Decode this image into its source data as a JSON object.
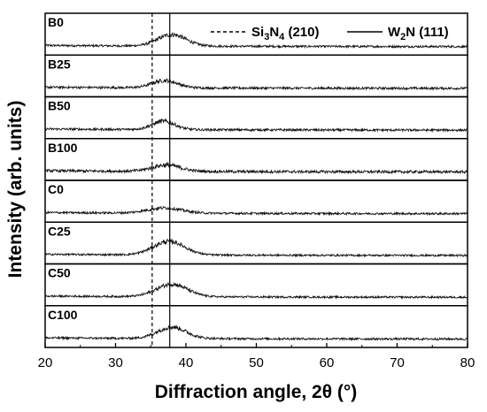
{
  "chart_data": {
    "type": "line",
    "xlabel": "Diffraction angle, 2θ (°)",
    "ylabel": "Intensity (arb. units)",
    "xlim": [
      20,
      80
    ],
    "xticks": [
      "20",
      "30",
      "40",
      "50",
      "60",
      "70",
      "80"
    ],
    "legend_position": "top-right",
    "legend": [
      {
        "base": "Si",
        "sub1": "3",
        "mid": "N",
        "sub2": "4",
        "suffix": " (210)",
        "style": "dashed",
        "x": 35.2
      },
      {
        "base": "W",
        "sub1": "2",
        "mid": "N",
        "sub2": "",
        "suffix": " (111)",
        "style": "solid",
        "x": 37.7
      }
    ],
    "series": [
      {
        "name": "B0",
        "peak_center": 38.0,
        "peak_height": 0.55,
        "peak_width": 2.0,
        "noise": 0.1
      },
      {
        "name": "B25",
        "peak_center": 37.0,
        "peak_height": 0.35,
        "peak_width": 1.8,
        "noise": 0.11
      },
      {
        "name": "B50",
        "peak_center": 36.8,
        "peak_height": 0.4,
        "peak_width": 1.6,
        "noise": 0.11
      },
      {
        "name": "B100",
        "peak_center": 37.2,
        "peak_height": 0.3,
        "peak_width": 2.0,
        "noise": 0.13
      },
      {
        "name": "C0",
        "peak_center": 37.0,
        "peak_height": 0.25,
        "peak_width": 2.4,
        "noise": 0.1
      },
      {
        "name": "C25",
        "peak_center": 37.6,
        "peak_height": 0.65,
        "peak_width": 2.2,
        "noise": 0.09
      },
      {
        "name": "C50",
        "peak_center": 38.0,
        "peak_height": 0.6,
        "peak_width": 2.2,
        "noise": 0.09
      },
      {
        "name": "C100",
        "peak_center": 38.0,
        "peak_height": 0.55,
        "peak_width": 2.0,
        "noise": 0.1
      }
    ],
    "grid": false
  }
}
